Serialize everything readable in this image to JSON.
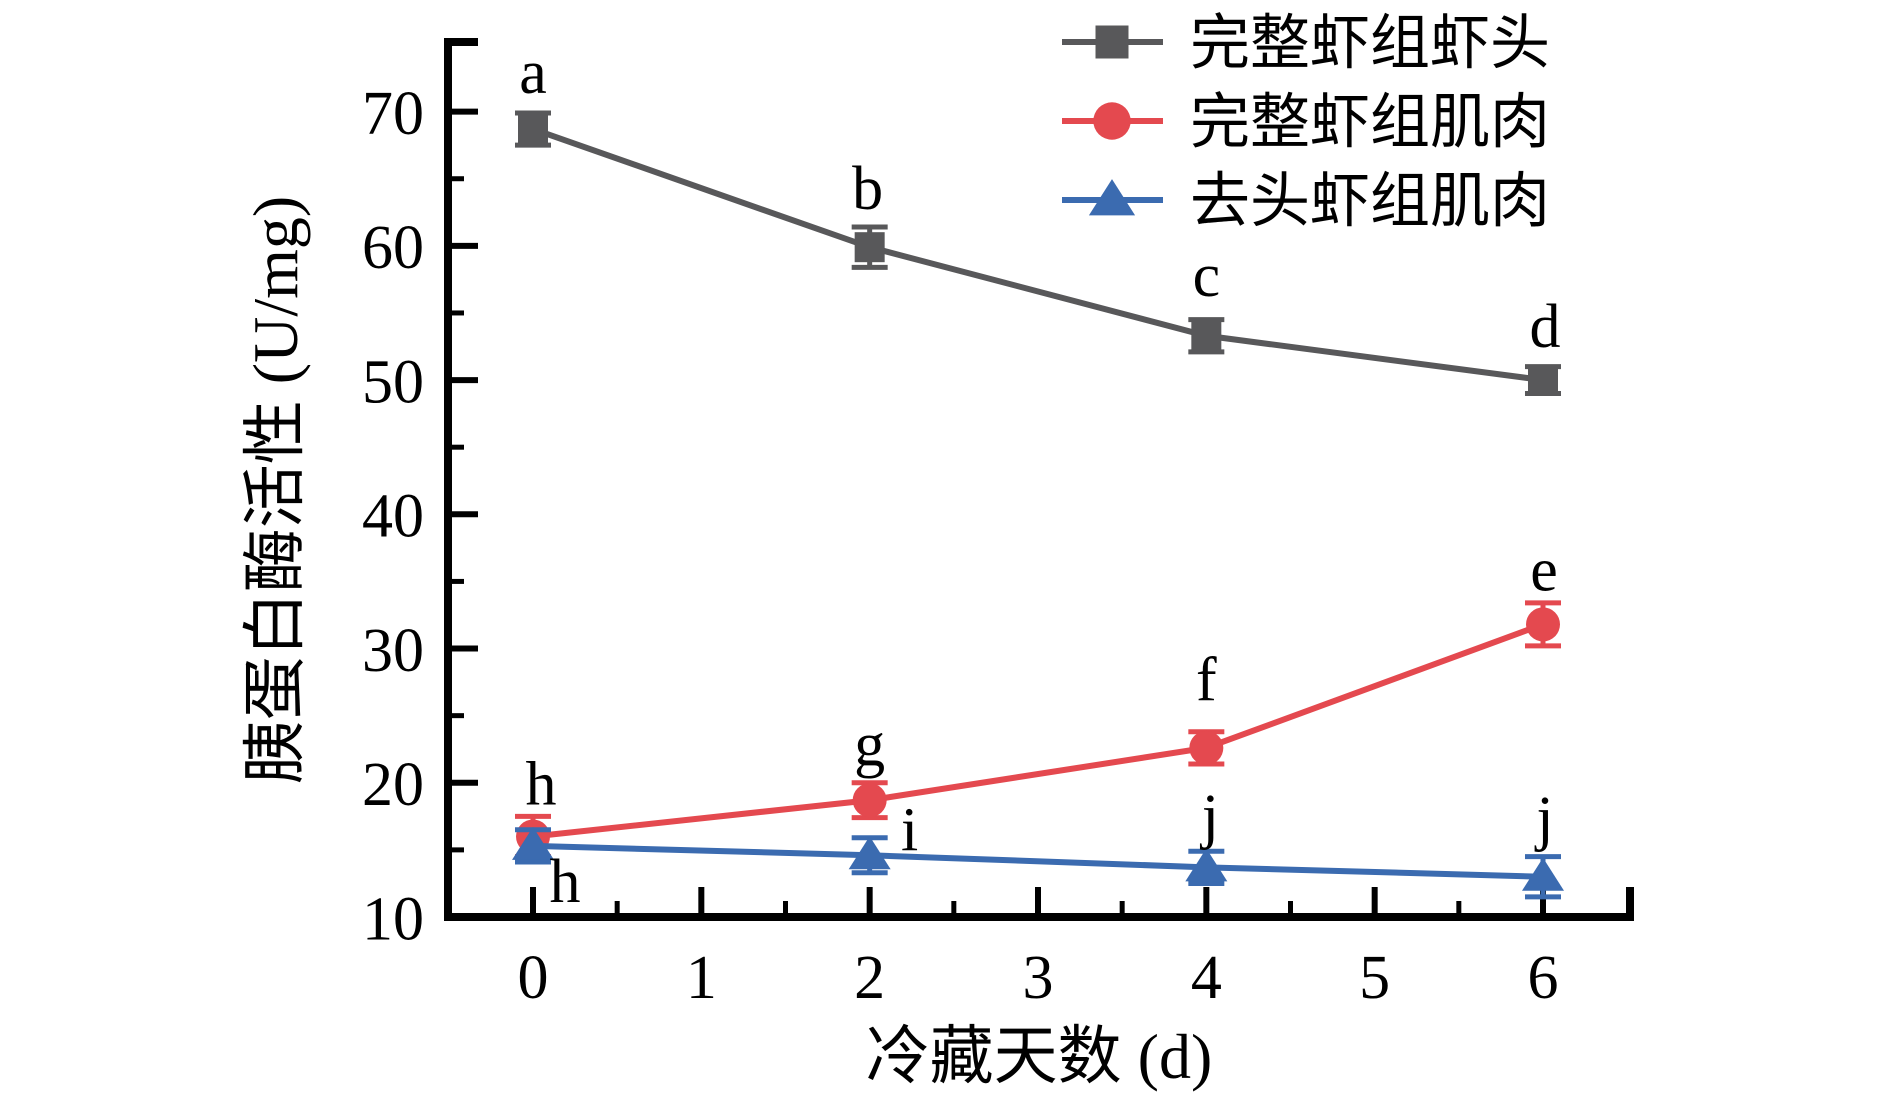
{
  "figure": {
    "background": "#ffffff",
    "frame_color": "#000000"
  },
  "chart_data": {
    "type": "line",
    "title": "",
    "xlabel": "冷藏天数 (d)",
    "ylabel": "胰蛋白酶活性 (U/mg)",
    "x": [
      0,
      2,
      4,
      6
    ],
    "x_axis": {
      "min": -0.5,
      "max": 6.5,
      "major_ticks": [
        0,
        1,
        2,
        3,
        4,
        5,
        6
      ],
      "tick_labels": [
        "0",
        "1",
        "2",
        "3",
        "4",
        "5",
        "6"
      ],
      "minor_step": 0.5
    },
    "y_axis": {
      "min": 10,
      "max": 75,
      "major_ticks": [
        10,
        20,
        30,
        40,
        50,
        60,
        70
      ],
      "tick_labels": [
        "10",
        "20",
        "30",
        "40",
        "50",
        "60",
        "70"
      ],
      "minor_ticks": [
        15,
        25,
        35,
        45,
        55,
        65
      ]
    },
    "grid": false,
    "legend_position": "top-right",
    "series": [
      {
        "name": "完整虾组虾头",
        "marker": "square",
        "color": "#58585a",
        "letter_color": "#000000",
        "values": [
          68.7,
          59.9,
          53.3,
          50.0
        ],
        "errors": [
          1.2,
          1.5,
          1.2,
          1.0
        ],
        "letters": [
          {
            "t": "a",
            "dx": 0,
            "dy": -36
          },
          {
            "t": "b",
            "dx": -2,
            "dy": -38
          },
          {
            "t": "c",
            "dx": 0,
            "dy": -40
          },
          {
            "t": "d",
            "dx": 2,
            "dy": -33
          }
        ]
      },
      {
        "name": "完整虾组肌肉",
        "marker": "circle",
        "color": "#e4494f",
        "letter_color": "#e4494f",
        "values": [
          16.0,
          18.7,
          22.6,
          31.8
        ],
        "errors": [
          1.5,
          1.3,
          1.2,
          1.6
        ],
        "letters": [
          {
            "t": "h",
            "dx": 8,
            "dy": -32
          },
          {
            "t": "g",
            "dx": 0,
            "dy": -35
          },
          {
            "t": "f",
            "dx": 0,
            "dy": -48
          },
          {
            "t": "e",
            "dx": 1,
            "dy": -34
          }
        ]
      },
      {
        "name": "去头虾组肌肉",
        "marker": "triangle",
        "color": "#3b6bb0",
        "letter_color": "#3b6bb0",
        "values": [
          15.3,
          14.6,
          13.7,
          13.0
        ],
        "errors": [
          1.2,
          1.3,
          1.2,
          1.5
        ],
        "letters": [
          {
            "t": "h",
            "dx": 32,
            "dy": 56
          },
          {
            "t": "i",
            "dx": 40,
            "dy": -5
          },
          {
            "t": "j",
            "dx": 4,
            "dy": -31
          },
          {
            "t": "j",
            "dx": 2,
            "dy": -38
          }
        ]
      }
    ]
  }
}
